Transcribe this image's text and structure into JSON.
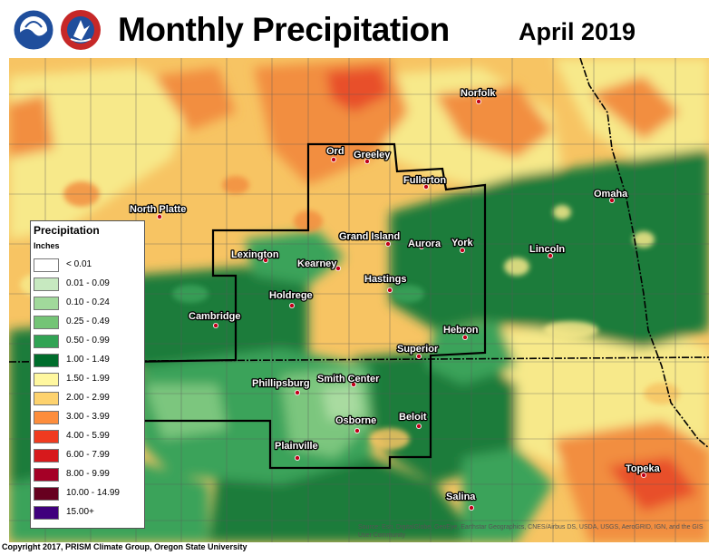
{
  "header": {
    "title": "Monthly Precipitation",
    "period": "April 2019",
    "logos": [
      "noaa-logo",
      "national-weather-service-logo"
    ]
  },
  "legend": {
    "title": "Precipitation",
    "units": "Inches",
    "entries": [
      {
        "label": "< 0.01",
        "color": "#ffffff"
      },
      {
        "label": "0.01 - 0.09",
        "color": "#c7e9c0"
      },
      {
        "label": "0.10 - 0.24",
        "color": "#a1d99b"
      },
      {
        "label": "0.25 - 0.49",
        "color": "#74c476"
      },
      {
        "label": "0.50 - 0.99",
        "color": "#31a354"
      },
      {
        "label": "1.00 - 1.49",
        "color": "#006d2c"
      },
      {
        "label": "1.50 - 1.99",
        "color": "#fff79f"
      },
      {
        "label": "2.00 - 2.99",
        "color": "#fdd26e"
      },
      {
        "label": "3.00 - 3.99",
        "color": "#fd8d3c"
      },
      {
        "label": "4.00 - 5.99",
        "color": "#f03b20"
      },
      {
        "label": "6.00 - 7.99",
        "color": "#d7191c"
      },
      {
        "label": "8.00 - 9.99",
        "color": "#a50026"
      },
      {
        "label": "10.00 - 14.99",
        "color": "#67001f"
      },
      {
        "label": "15.00+",
        "color": "#3f007d"
      }
    ]
  },
  "cities": [
    {
      "name": "Norfolk"
    },
    {
      "name": "Ord"
    },
    {
      "name": "Greeley"
    },
    {
      "name": "Fullerton"
    },
    {
      "name": "North Platte"
    },
    {
      "name": "Omaha"
    },
    {
      "name": "Grand Island"
    },
    {
      "name": "Aurora"
    },
    {
      "name": "York"
    },
    {
      "name": "Lexington"
    },
    {
      "name": "Kearney"
    },
    {
      "name": "Lincoln"
    },
    {
      "name": "Hastings"
    },
    {
      "name": "Holdrege"
    },
    {
      "name": "Cambridge"
    },
    {
      "name": "Hebron"
    },
    {
      "name": "Superior"
    },
    {
      "name": "Phillipsburg"
    },
    {
      "name": "Smith Center"
    },
    {
      "name": "Osborne"
    },
    {
      "name": "Beloit"
    },
    {
      "name": "Plainville"
    },
    {
      "name": "Topeka"
    },
    {
      "name": "Salina"
    }
  ],
  "footer": {
    "copyright": "Copyright 2017, PRISM Climate Group, Oregon State University",
    "source": "Source: Esri, DigitalGlobe, GeoEye, Earthstar Geographics, CNES/Airbus DS, USDA, USGS, AeroGRID, IGN, and the GIS User Community"
  },
  "colors": {
    "state_border": "#000000",
    "county_line": "#5a5a5a",
    "cwa_outline": "#000000"
  }
}
